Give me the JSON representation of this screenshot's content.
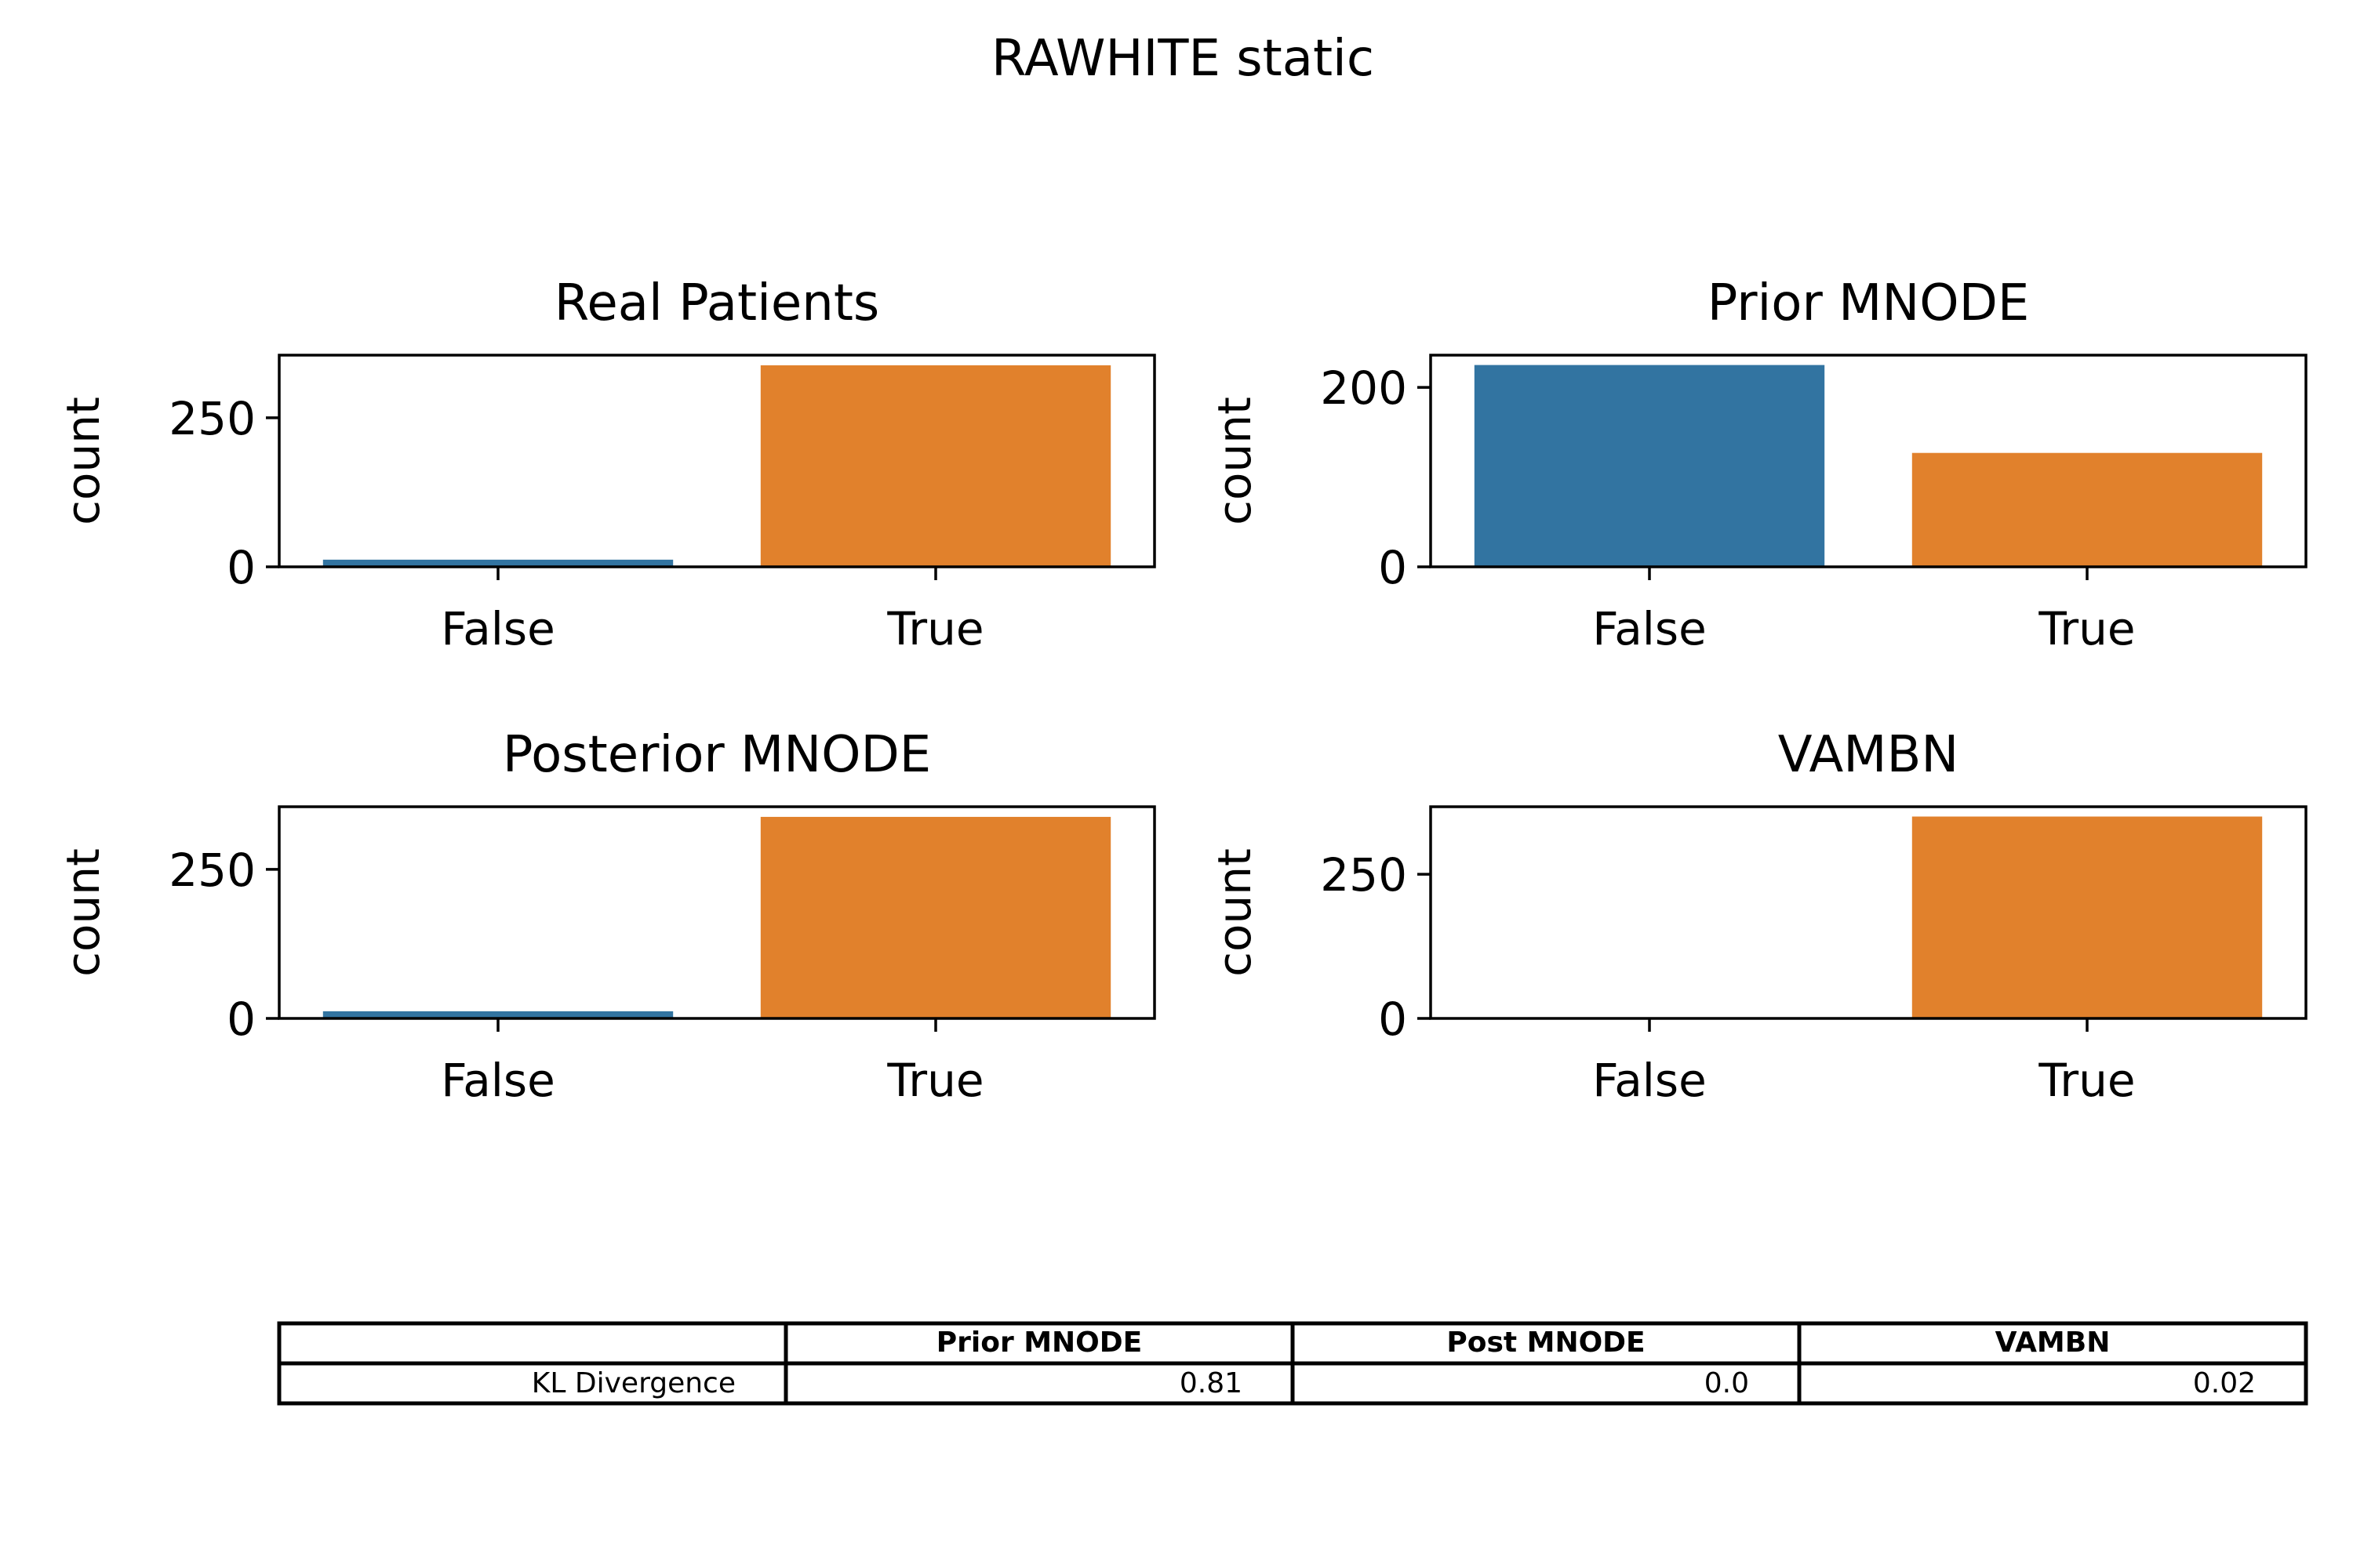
{
  "figure": {
    "title": "RAWHITE static"
  },
  "colors": {
    "false_bar": "#3274a1",
    "true_bar": "#e1812c"
  },
  "chart_data": [
    {
      "type": "bar",
      "title": "Real Patients",
      "categories": [
        "False",
        "True"
      ],
      "values": [
        12,
        338
      ],
      "xlabel": "",
      "ylabel": "count",
      "ylim": [
        0,
        355
      ],
      "yticks": [
        0,
        250
      ],
      "grid": false
    },
    {
      "type": "bar",
      "title": "Prior MNODE",
      "categories": [
        "False",
        "True"
      ],
      "values": [
        225,
        127
      ],
      "xlabel": "",
      "ylabel": "count",
      "ylim": [
        0,
        236
      ],
      "yticks": [
        0,
        200
      ],
      "grid": false
    },
    {
      "type": "bar",
      "title": "Posterior MNODE",
      "categories": [
        "False",
        "True"
      ],
      "values": [
        12,
        338
      ],
      "xlabel": "",
      "ylabel": "count",
      "ylim": [
        0,
        355
      ],
      "yticks": [
        0,
        250
      ],
      "grid": false
    },
    {
      "type": "bar",
      "title": "VAMBN",
      "categories": [
        "False",
        "True"
      ],
      "values": [
        0,
        350
      ],
      "xlabel": "",
      "ylabel": "count",
      "ylim": [
        0,
        367
      ],
      "yticks": [
        0,
        250
      ],
      "grid": false
    }
  ],
  "table": {
    "columns": [
      "",
      "Prior MNODE",
      "Post MNODE",
      "VAMBN"
    ],
    "rows": [
      {
        "label": "KL Divergence",
        "values": [
          "0.81",
          "0.0",
          "0.02"
        ]
      }
    ]
  }
}
